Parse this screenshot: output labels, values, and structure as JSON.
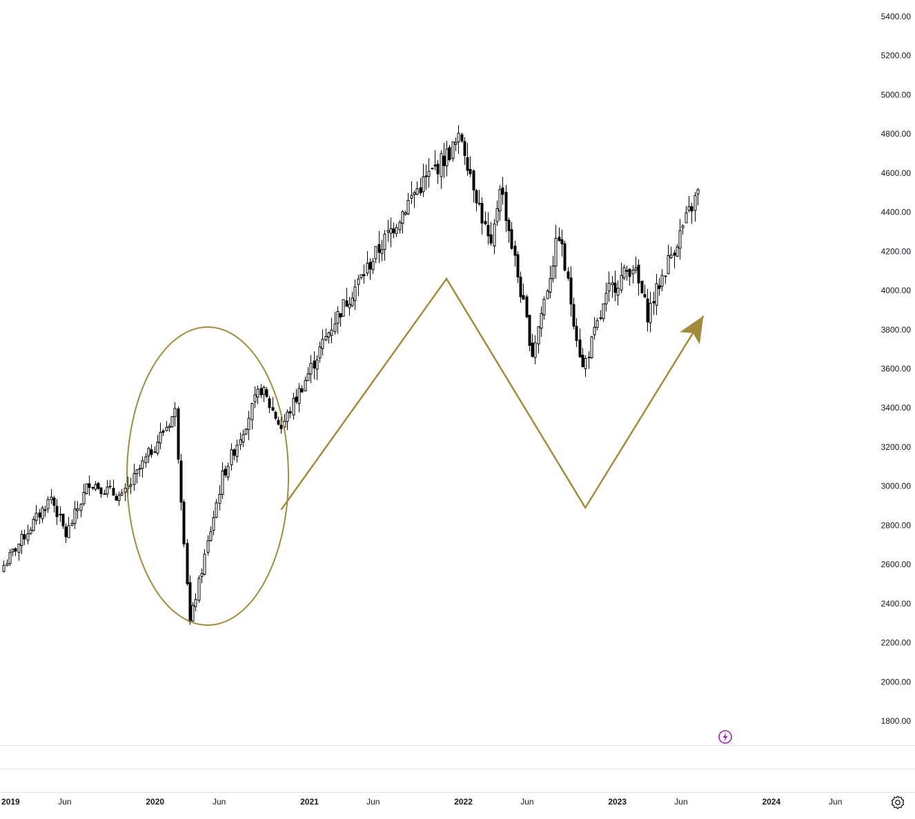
{
  "chart_data": {
    "type": "candlestick",
    "y_axis": {
      "range": [
        1700,
        5500
      ],
      "ticks": [
        "5400.00",
        "5200.00",
        "5000.00",
        "4800.00",
        "4600.00",
        "4400.00",
        "4200.00",
        "4000.00",
        "3800.00",
        "3600.00",
        "3400.00",
        "3200.00",
        "3000.00",
        "2800.00",
        "2600.00",
        "2400.00",
        "2200.00",
        "2000.00",
        "1800.00"
      ],
      "position": "right"
    },
    "x_axis": {
      "range": [
        "2018-12-31",
        "2024-08-19"
      ],
      "ticks": [
        {
          "label": "2019",
          "date": "2019-01-01",
          "bold": true
        },
        {
          "label": "Jun",
          "date": "2019-06-01",
          "bold": false
        },
        {
          "label": "2020",
          "date": "2020-01-01",
          "bold": true
        },
        {
          "label": "Jun",
          "date": "2020-06-01",
          "bold": false
        },
        {
          "label": "2021",
          "date": "2021-01-01",
          "bold": true
        },
        {
          "label": "Jun",
          "date": "2021-06-01",
          "bold": false
        },
        {
          "label": "2022",
          "date": "2022-01-01",
          "bold": true
        },
        {
          "label": "Jun",
          "date": "2022-06-01",
          "bold": false
        },
        {
          "label": "2023",
          "date": "2023-01-01",
          "bold": true
        },
        {
          "label": "Jun",
          "date": "2023-06-01",
          "bold": false
        },
        {
          "label": "2024",
          "date": "2024-01-01",
          "bold": true
        },
        {
          "label": "Jun",
          "date": "2024-06-01",
          "bold": false
        }
      ]
    },
    "series": [
      {
        "interval": "weekly",
        "start_date": "2019-01-07",
        "close_path": [
          {
            "date": "2019-01-07",
            "close": 2596
          },
          {
            "date": "2019-04-29",
            "close": 2945
          },
          {
            "date": "2019-06-03",
            "close": 2750
          },
          {
            "date": "2019-07-29",
            "close": 3025
          },
          {
            "date": "2019-10-14",
            "close": 2940
          },
          {
            "date": "2020-02-17",
            "close": 3380
          },
          {
            "date": "2020-03-23",
            "close": 2300
          },
          {
            "date": "2020-06-08",
            "close": 3050
          },
          {
            "date": "2020-09-07",
            "close": 3500
          },
          {
            "date": "2020-10-26",
            "close": 3300
          },
          {
            "date": "2021-03-01",
            "close": 3850
          },
          {
            "date": "2021-09-06",
            "close": 4500
          },
          {
            "date": "2021-12-27",
            "close": 4780
          },
          {
            "date": "2022-03-07",
            "close": 4200
          },
          {
            "date": "2022-03-28",
            "close": 4550
          },
          {
            "date": "2022-06-13",
            "close": 3680
          },
          {
            "date": "2022-08-15",
            "close": 4290
          },
          {
            "date": "2022-10-10",
            "close": 3600
          },
          {
            "date": "2022-12-12",
            "close": 4000
          },
          {
            "date": "2023-02-06",
            "close": 4130
          },
          {
            "date": "2023-03-13",
            "close": 3880
          },
          {
            "date": "2023-05-01",
            "close": 4150
          },
          {
            "date": "2023-07-10",
            "close": 4500
          }
        ]
      }
    ],
    "annotations": [
      {
        "type": "ellipse",
        "label": "",
        "color": "#A38B3C"
      },
      {
        "type": "zigzag-path",
        "label": "",
        "color": "#A38B3C",
        "points": [
          {
            "date": "2020-10-26",
            "price": 2880
          },
          {
            "date": "2021-11-22",
            "price": 4060
          },
          {
            "date": "2022-10-17",
            "price": 2890
          },
          {
            "date": "2023-07-24",
            "price": 3870
          }
        ],
        "arrow": true
      }
    ],
    "colors": {
      "up_fill": "#ffffff",
      "down_fill": "#000000",
      "wick": "#000000",
      "annotation": "#A38B3C",
      "grid_line": "#e0e3eb",
      "axis_text": "#131722",
      "badge": "#9c27b0"
    },
    "grid": false
  },
  "icons": {
    "settings": "gear-icon",
    "badge": "lightning-bolt-icon"
  }
}
